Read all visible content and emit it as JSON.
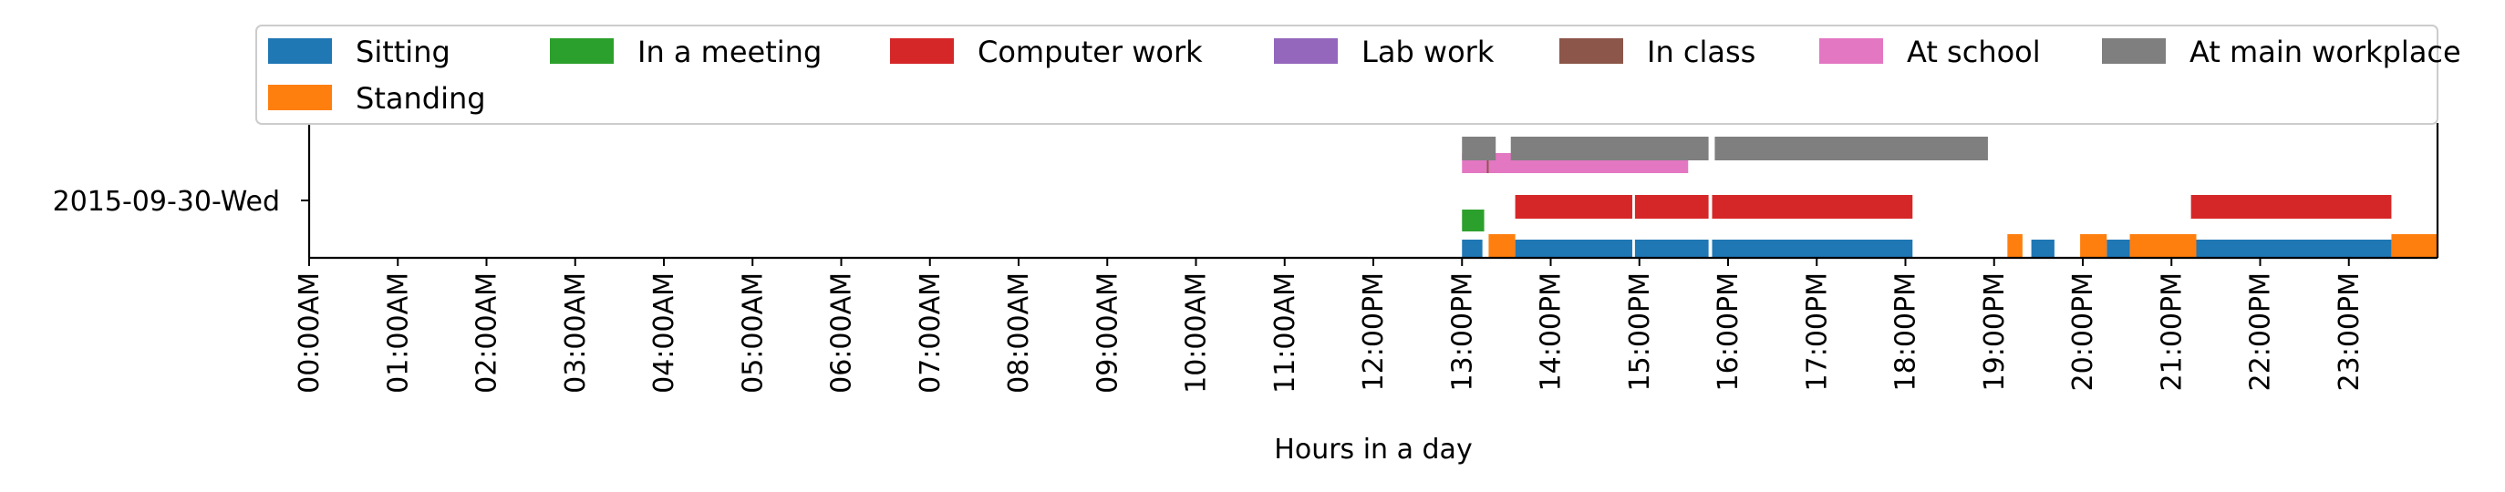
{
  "chart_data": {
    "type": "timeline",
    "xlabel": "Hours in a day",
    "xlim": [
      0,
      24
    ],
    "x_ticks": [
      {
        "value": 0,
        "label": "00:00AM"
      },
      {
        "value": 1,
        "label": "01:00AM"
      },
      {
        "value": 2,
        "label": "02:00AM"
      },
      {
        "value": 3,
        "label": "03:00AM"
      },
      {
        "value": 4,
        "label": "04:00AM"
      },
      {
        "value": 5,
        "label": "05:00AM"
      },
      {
        "value": 6,
        "label": "06:00AM"
      },
      {
        "value": 7,
        "label": "07:00AM"
      },
      {
        "value": 8,
        "label": "08:00AM"
      },
      {
        "value": 9,
        "label": "09:00AM"
      },
      {
        "value": 10,
        "label": "10:00AM"
      },
      {
        "value": 11,
        "label": "11:00AM"
      },
      {
        "value": 12,
        "label": "12:00PM"
      },
      {
        "value": 13,
        "label": "13:00PM"
      },
      {
        "value": 14,
        "label": "14:00PM"
      },
      {
        "value": 15,
        "label": "15:00PM"
      },
      {
        "value": 16,
        "label": "16:00PM"
      },
      {
        "value": 17,
        "label": "17:00PM"
      },
      {
        "value": 18,
        "label": "18:00PM"
      },
      {
        "value": 19,
        "label": "19:00PM"
      },
      {
        "value": 20,
        "label": "20:00PM"
      },
      {
        "value": 21,
        "label": "21:00PM"
      },
      {
        "value": 22,
        "label": "22:00PM"
      },
      {
        "value": 23,
        "label": "23:00PM"
      }
    ],
    "y_categories": [
      "2015-09-30-Wed"
    ],
    "legend_position": "top",
    "series": [
      {
        "name": "Sitting",
        "color": "#1f77b4",
        "lane": 0,
        "intervals": [
          [
            13.0,
            13.23
          ],
          [
            13.6,
            14.92
          ],
          [
            14.95,
            15.78
          ],
          [
            15.82,
            18.08
          ],
          [
            19.42,
            19.68
          ],
          [
            20.27,
            20.53
          ],
          [
            21.22,
            23.48
          ]
        ]
      },
      {
        "name": "Standing",
        "color": "#ff7f0e",
        "lane": 1,
        "intervals": [
          [
            13.3,
            13.6
          ],
          [
            19.15,
            19.32
          ],
          [
            19.97,
            20.27
          ],
          [
            20.53,
            21.28
          ],
          [
            23.48,
            24.0
          ]
        ]
      },
      {
        "name": "In a meeting",
        "color": "#2ca02c",
        "lane": 2,
        "intervals": [
          [
            13.0,
            13.25
          ]
        ]
      },
      {
        "name": "Computer work",
        "color": "#d62728",
        "lane": 3,
        "intervals": [
          [
            13.6,
            14.92
          ],
          [
            14.95,
            15.78
          ],
          [
            15.82,
            18.08
          ],
          [
            21.22,
            23.48
          ]
        ]
      },
      {
        "name": "Lab work",
        "color": "#9467bd",
        "lane": 4,
        "intervals": []
      },
      {
        "name": "In class",
        "color": "#8c564b",
        "lane": 5,
        "intervals": [
          [
            13.15,
            13.5
          ]
        ]
      },
      {
        "name": "At school",
        "color": "#e377c2",
        "lane": 5,
        "intervals": [
          [
            13.0,
            13.28
          ],
          [
            13.3,
            15.55
          ]
        ]
      },
      {
        "name": "At main workplace",
        "color": "#7f7f7f",
        "lane": 6,
        "intervals": [
          [
            13.0,
            13.38
          ],
          [
            13.55,
            15.78
          ],
          [
            15.85,
            18.93
          ]
        ]
      }
    ]
  }
}
